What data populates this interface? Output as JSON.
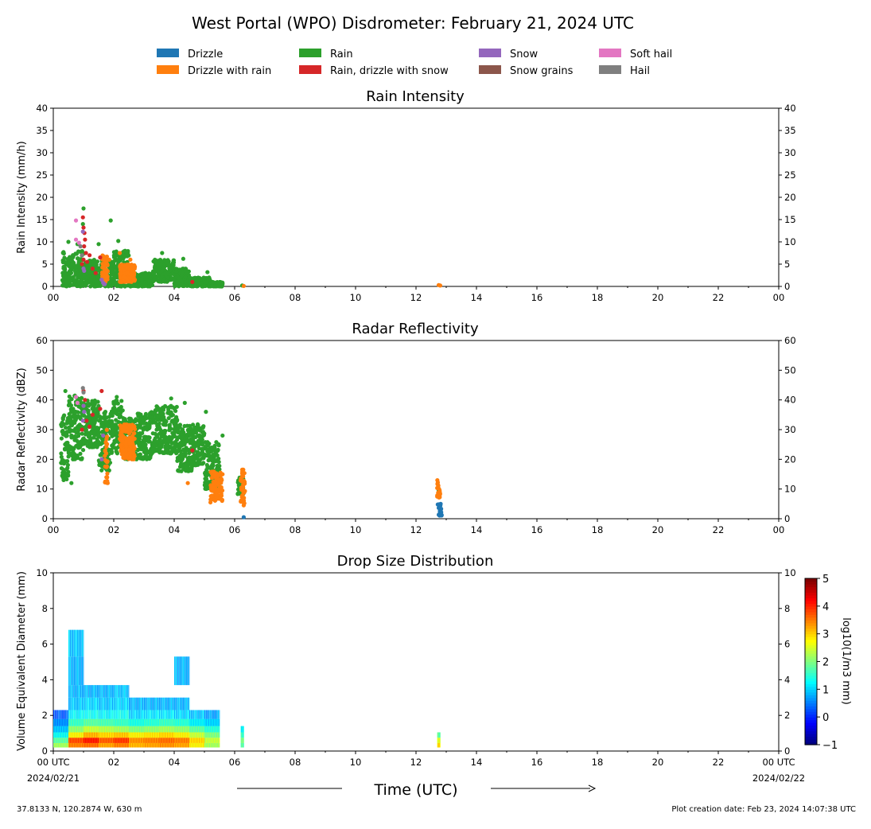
{
  "title": "West Portal (WPO) Disdrometer: February 21, 2024 UTC",
  "legend": [
    {
      "label": "Drizzle",
      "color": "#1f77b4"
    },
    {
      "label": "Drizzle with rain",
      "color": "#ff7f0e"
    },
    {
      "label": "Rain",
      "color": "#2ca02c"
    },
    {
      "label": "Rain, drizzle with snow",
      "color": "#d62728"
    },
    {
      "label": "Snow",
      "color": "#9467bd"
    },
    {
      "label": "Snow grains",
      "color": "#8c564b"
    },
    {
      "label": "Soft hail",
      "color": "#e377c2"
    },
    {
      "label": "Hail",
      "color": "#7f7f7f"
    }
  ],
  "time_ticks": [
    "00",
    "02",
    "04",
    "06",
    "08",
    "10",
    "12",
    "14",
    "16",
    "18",
    "20",
    "22",
    "00"
  ],
  "bottom_time_ticks": [
    "00 UTC",
    "02",
    "04",
    "06",
    "08",
    "10",
    "12",
    "14",
    "16",
    "18",
    "20",
    "22",
    "00 UTC"
  ],
  "bottom_dates": {
    "start": "2024/02/21",
    "end": "2024/02/22"
  },
  "xlabel": "Time (UTC)",
  "footer": {
    "location": "37.8133 N, 120.2874 W, 630 m",
    "created": "Plot creation date: Feb 23, 2024 14:07:38 UTC"
  },
  "colorbar": {
    "label": "log10(1/m3 mm)",
    "ticks": [
      "5",
      "4",
      "3",
      "2",
      "1",
      "0",
      "−1"
    ],
    "range": [
      -1,
      5
    ],
    "colormap": "jet"
  },
  "chart_data": [
    {
      "type": "scatter",
      "title": "Rain Intensity",
      "ylabel": "Rain Intensity (mm/h)",
      "xlim": [
        0,
        24
      ],
      "ylim": [
        0,
        40
      ],
      "yticks": [
        "0",
        "5",
        "10",
        "15",
        "20",
        "25",
        "30",
        "35",
        "40"
      ],
      "series": [
        {
          "name": "Rain",
          "segments": [
            {
              "x0": 0.3,
              "x1": 1.0,
              "ymin": 0,
              "ymax": 8
            },
            {
              "x0": 1.0,
              "x1": 2.0,
              "ymin": 0,
              "ymax": 6
            },
            {
              "x0": 2.0,
              "x1": 2.5,
              "ymin": 0,
              "ymax": 8
            },
            {
              "x0": 2.5,
              "x1": 3.3,
              "ymin": 0,
              "ymax": 3
            },
            {
              "x0": 3.3,
              "x1": 4.0,
              "ymin": 1,
              "ymax": 6
            },
            {
              "x0": 4.0,
              "x1": 4.5,
              "ymin": 0,
              "ymax": 4
            },
            {
              "x0": 4.5,
              "x1": 5.2,
              "ymin": 0,
              "ymax": 2
            },
            {
              "x0": 5.2,
              "x1": 5.6,
              "ymin": 0,
              "ymax": 1
            }
          ],
          "points": [
            {
              "x": 1.0,
              "y": 17.5
            },
            {
              "x": 0.98,
              "y": 14.0
            },
            {
              "x": 1.9,
              "y": 14.8
            },
            {
              "x": 0.5,
              "y": 10.0
            },
            {
              "x": 0.8,
              "y": 9.5
            },
            {
              "x": 1.5,
              "y": 9.5
            },
            {
              "x": 2.15,
              "y": 10.2
            },
            {
              "x": 3.6,
              "y": 7.5
            },
            {
              "x": 4.3,
              "y": 6.2
            },
            {
              "x": 5.1,
              "y": 3.2
            },
            {
              "x": 6.25,
              "y": 0.2
            }
          ]
        },
        {
          "name": "Drizzle with rain",
          "segments": [
            {
              "x0": 1.6,
              "x1": 1.8,
              "ymin": 1,
              "ymax": 7
            },
            {
              "x0": 2.2,
              "x1": 2.7,
              "ymin": 1,
              "ymax": 5
            }
          ],
          "points": [
            {
              "x": 1.85,
              "y": 6.0
            },
            {
              "x": 2.55,
              "y": 6.0
            },
            {
              "x": 2.2,
              "y": 7.5
            },
            {
              "x": 6.3,
              "y": 0.1
            },
            {
              "x": 12.75,
              "y": 0.3
            },
            {
              "x": 12.8,
              "y": 0.2
            }
          ]
        },
        {
          "name": "Rain, drizzle with snow",
          "points": [
            {
              "x": 0.98,
              "y": 15.5
            },
            {
              "x": 1.0,
              "y": 13.2
            },
            {
              "x": 1.03,
              "y": 12.0
            },
            {
              "x": 1.05,
              "y": 10.5
            },
            {
              "x": 1.02,
              "y": 9.0
            },
            {
              "x": 1.08,
              "y": 7.5
            },
            {
              "x": 1.0,
              "y": 6.0
            },
            {
              "x": 1.12,
              "y": 5.5
            },
            {
              "x": 1.2,
              "y": 7.0
            },
            {
              "x": 1.3,
              "y": 4.0
            },
            {
              "x": 1.4,
              "y": 3.0
            },
            {
              "x": 1.55,
              "y": 6.5
            },
            {
              "x": 0.95,
              "y": 5.0
            },
            {
              "x": 4.6,
              "y": 1.0
            }
          ]
        },
        {
          "name": "Snow",
          "points": [
            {
              "x": 0.98,
              "y": 12.3
            },
            {
              "x": 1.0,
              "y": 4.0
            },
            {
              "x": 1.02,
              "y": 3.5
            },
            {
              "x": 1.6,
              "y": 1.5
            },
            {
              "x": 1.65,
              "y": 0.8
            },
            {
              "x": 1.7,
              "y": 0.5
            }
          ]
        },
        {
          "name": "Soft hail",
          "points": [
            {
              "x": 0.75,
              "y": 14.8
            },
            {
              "x": 0.75,
              "y": 10.5
            },
            {
              "x": 0.85,
              "y": 9.8
            }
          ]
        },
        {
          "name": "Hail",
          "points": [
            {
              "x": 0.9,
              "y": 9.0
            },
            {
              "x": 0.95,
              "y": 7.0
            }
          ]
        }
      ]
    },
    {
      "type": "scatter",
      "title": "Radar Reflectivity",
      "ylabel": "Radar Reflectivity (dBZ)",
      "xlim": [
        0,
        24
      ],
      "ylim": [
        0,
        60
      ],
      "yticks": [
        "0",
        "10",
        "20",
        "30",
        "40",
        "50",
        "60"
      ],
      "series": [
        {
          "name": "Rain",
          "segments": [
            {
              "x0": 0.25,
              "x1": 0.5,
              "ymin": 13,
              "ymax": 35
            },
            {
              "x0": 0.5,
              "x1": 1.0,
              "ymin": 20,
              "ymax": 42
            },
            {
              "x0": 1.0,
              "x1": 1.5,
              "ymin": 24,
              "ymax": 40
            },
            {
              "x0": 1.5,
              "x1": 1.9,
              "ymin": 16,
              "ymax": 36
            },
            {
              "x0": 1.9,
              "x1": 2.3,
              "ymin": 22,
              "ymax": 40
            },
            {
              "x0": 2.3,
              "x1": 2.7,
              "ymin": 20,
              "ymax": 34
            },
            {
              "x0": 2.7,
              "x1": 3.3,
              "ymin": 20,
              "ymax": 36
            },
            {
              "x0": 3.3,
              "x1": 4.1,
              "ymin": 22,
              "ymax": 38
            },
            {
              "x0": 4.1,
              "x1": 4.6,
              "ymin": 16,
              "ymax": 32
            },
            {
              "x0": 4.6,
              "x1": 5.0,
              "ymin": 18,
              "ymax": 32
            },
            {
              "x0": 5.0,
              "x1": 5.5,
              "ymin": 10,
              "ymax": 26
            },
            {
              "x0": 6.1,
              "x1": 6.3,
              "ymin": 8,
              "ymax": 14
            }
          ],
          "points": [
            {
              "x": 0.4,
              "y": 43.0
            },
            {
              "x": 2.1,
              "y": 41.0
            },
            {
              "x": 3.9,
              "y": 40.5
            },
            {
              "x": 4.35,
              "y": 39.0
            },
            {
              "x": 5.05,
              "y": 36.0
            },
            {
              "x": 5.6,
              "y": 28.0
            },
            {
              "x": 0.6,
              "y": 12.0
            },
            {
              "x": 12.75,
              "y": 9.5
            }
          ]
        },
        {
          "name": "Drizzle with rain",
          "segments": [
            {
              "x0": 1.7,
              "x1": 1.8,
              "ymin": 12,
              "ymax": 30
            },
            {
              "x0": 2.2,
              "x1": 2.7,
              "ymin": 20,
              "ymax": 32
            },
            {
              "x0": 5.2,
              "x1": 5.6,
              "ymin": 6,
              "ymax": 16
            },
            {
              "x0": 6.2,
              "x1": 6.35,
              "ymin": 5,
              "ymax": 17
            },
            {
              "x0": 12.7,
              "x1": 12.8,
              "ymin": 7,
              "ymax": 13
            }
          ],
          "points": [
            {
              "x": 1.8,
              "y": 12.0
            },
            {
              "x": 4.45,
              "y": 12.0
            },
            {
              "x": 5.2,
              "y": 5.5
            },
            {
              "x": 6.25,
              "y": 16.5
            },
            {
              "x": 6.3,
              "y": 4.5
            }
          ]
        },
        {
          "name": "Drizzle",
          "segments": [
            {
              "x0": 12.75,
              "x1": 12.85,
              "ymin": 1,
              "ymax": 5
            }
          ],
          "points": [
            {
              "x": 6.3,
              "y": 0.5
            },
            {
              "x": 12.72,
              "y": 4.8
            }
          ]
        },
        {
          "name": "Rain, drizzle with snow",
          "points": [
            {
              "x": 1.0,
              "y": 43.0
            },
            {
              "x": 1.05,
              "y": 40.0
            },
            {
              "x": 1.1,
              "y": 33.0
            },
            {
              "x": 1.2,
              "y": 31.0
            },
            {
              "x": 1.3,
              "y": 35.0
            },
            {
              "x": 1.6,
              "y": 43.0
            },
            {
              "x": 1.55,
              "y": 37.0
            },
            {
              "x": 0.95,
              "y": 30.0
            },
            {
              "x": 4.6,
              "y": 23.0
            }
          ]
        },
        {
          "name": "Snow",
          "points": [
            {
              "x": 1.0,
              "y": 38.0
            },
            {
              "x": 1.02,
              "y": 36.0
            },
            {
              "x": 1.6,
              "y": 20.0
            },
            {
              "x": 1.65,
              "y": 28.0
            },
            {
              "x": 0.98,
              "y": 33.0
            }
          ]
        },
        {
          "name": "Soft hail",
          "points": [
            {
              "x": 0.75,
              "y": 41.0
            },
            {
              "x": 0.8,
              "y": 39.0
            }
          ]
        },
        {
          "name": "Hail",
          "points": [
            {
              "x": 0.98,
              "y": 44.0
            },
            {
              "x": 1.0,
              "y": 42.5
            }
          ]
        }
      ]
    },
    {
      "type": "heatmap",
      "title": "Drop Size Distribution",
      "ylabel": "Volume Equivalent Diameter (mm)",
      "xlabel": "Time (UTC)",
      "xlim": [
        0,
        24
      ],
      "ylim": [
        0,
        10
      ],
      "yticks": [
        "0",
        "2",
        "4",
        "6",
        "8",
        "10"
      ],
      "value_unit": "log10(1/m3 mm)",
      "x": [
        0.25,
        0.75,
        1.25,
        1.75,
        2.25,
        2.75,
        3.25,
        3.75,
        4.25,
        4.75,
        5.25,
        6.25,
        12.75
      ],
      "y_bins": [
        0.3,
        0.6,
        0.9,
        1.2,
        1.6,
        2.0,
        2.6,
        3.4,
        4.0,
        6.6
      ],
      "values": [
        [
          2.2,
          1.8,
          1.3,
          0.9,
          0.6,
          0.3,
          null,
          null,
          null,
          null
        ],
        [
          3.5,
          3.8,
          2.8,
          2.1,
          1.6,
          1.2,
          0.9,
          0.8,
          0.8,
          0.9
        ],
        [
          3.6,
          4.1,
          3.2,
          2.4,
          1.8,
          1.3,
          1.0,
          0.8,
          null,
          null
        ],
        [
          3.3,
          3.7,
          3.0,
          2.3,
          1.7,
          1.2,
          0.9,
          0.8,
          null,
          null
        ],
        [
          3.5,
          3.9,
          3.1,
          2.2,
          1.6,
          1.3,
          1.0,
          0.9,
          null,
          null
        ],
        [
          3.2,
          3.4,
          2.8,
          2.0,
          1.4,
          1.0,
          0.8,
          null,
          null,
          null
        ],
        [
          3.3,
          3.5,
          2.9,
          2.1,
          1.5,
          1.1,
          0.8,
          null,
          null,
          null
        ],
        [
          3.4,
          3.6,
          3.0,
          2.2,
          1.6,
          1.1,
          0.8,
          null,
          null,
          null
        ],
        [
          3.3,
          3.5,
          2.8,
          2.1,
          1.5,
          1.0,
          0.8,
          null,
          0.8,
          null
        ],
        [
          2.8,
          3.0,
          2.4,
          1.8,
          1.2,
          0.9,
          null,
          null,
          null,
          null
        ],
        [
          2.2,
          2.4,
          2.0,
          1.5,
          1.0,
          0.7,
          null,
          null,
          null,
          null
        ],
        [
          1.8,
          2.0,
          1.6,
          1.2,
          null,
          null,
          null,
          null,
          null,
          null
        ],
        [
          3.0,
          2.6,
          1.8,
          null,
          null,
          null,
          null,
          null,
          null,
          null
        ]
      ]
    }
  ]
}
